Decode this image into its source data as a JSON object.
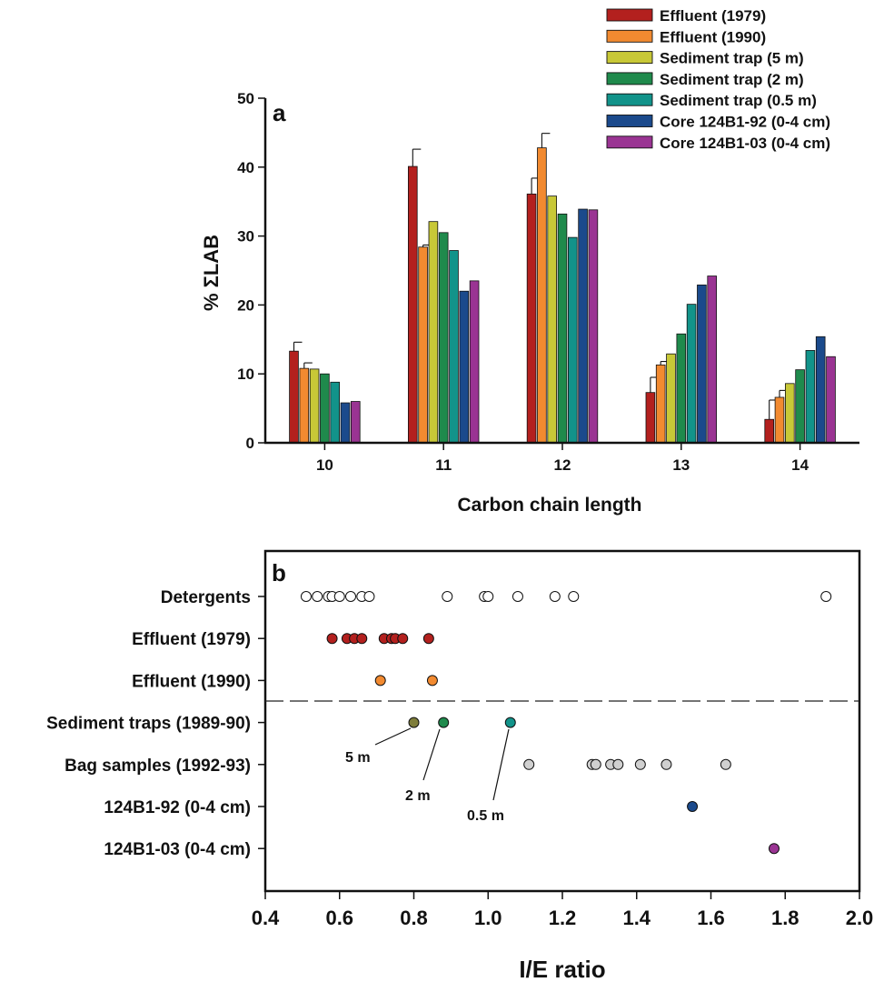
{
  "chart_data": [
    {
      "panel": "a",
      "type": "bar",
      "xlabel": "Carbon chain length",
      "ylabel": "% ΣLAB",
      "categories": [
        "10",
        "11",
        "12",
        "13",
        "14"
      ],
      "ylim": [
        0,
        50
      ],
      "yticks": [
        "0",
        "10",
        "20",
        "30",
        "40",
        "50"
      ],
      "grid": false,
      "legend_position": "top-right",
      "series": [
        {
          "name": "Effluent (1979)",
          "color": "#b3201e",
          "values": [
            13.3,
            40.1,
            36.1,
            7.3,
            3.4
          ],
          "errors": [
            1.3,
            2.5,
            2.3,
            2.2,
            2.8
          ]
        },
        {
          "name": "Effluent (1990)",
          "color": "#f28a30",
          "values": [
            10.8,
            28.4,
            42.8,
            11.3,
            6.6
          ],
          "errors": [
            0.8,
            0.3,
            2.1,
            0.5,
            1.0
          ]
        },
        {
          "name": "Sediment trap (5 m)",
          "color": "#c8c837",
          "values": [
            10.7,
            32.1,
            35.8,
            12.9,
            8.6
          ]
        },
        {
          "name": "Sediment trap (2 m)",
          "color": "#1f8a4c",
          "values": [
            10.0,
            30.5,
            33.2,
            15.8,
            10.6
          ]
        },
        {
          "name": "Sediment trap (0.5 m)",
          "color": "#12938a",
          "values": [
            8.8,
            27.9,
            29.8,
            20.1,
            13.4
          ]
        },
        {
          "name": "Core 124B1-92 (0-4 cm)",
          "color": "#1b4a8c",
          "values": [
            5.8,
            22.0,
            33.9,
            22.9,
            15.4
          ]
        },
        {
          "name": "Core 124B1-03 (0-4 cm)",
          "color": "#9a3493",
          "values": [
            6.0,
            23.5,
            33.8,
            24.2,
            12.5
          ]
        }
      ]
    },
    {
      "panel": "b",
      "type": "scatter",
      "xlabel": "I/E ratio",
      "xlim": [
        0.4,
        2.0
      ],
      "xticks": [
        "0.4",
        "0.6",
        "0.8",
        "1.0",
        "1.2",
        "1.4",
        "1.6",
        "1.8",
        "2.0"
      ],
      "grid": false,
      "categories": [
        "Detergents",
        "Effluent (1979)",
        "Effluent (1990)",
        "Sediment traps (1989-90)",
        "Bag samples (1992-93)",
        "124B1-92 (0-4 cm)",
        "124B1-03 (0-4 cm)"
      ],
      "separator_after": "Effluent (1990)",
      "series": [
        {
          "category": "Detergents",
          "color": "#ffffff",
          "x": [
            0.51,
            0.54,
            0.57,
            0.58,
            0.6,
            0.63,
            0.66,
            0.68,
            0.89,
            0.99,
            1.0,
            1.08,
            1.18,
            1.23,
            1.91
          ]
        },
        {
          "category": "Effluent (1979)",
          "color": "#b3201e",
          "x": [
            0.58,
            0.62,
            0.64,
            0.66,
            0.72,
            0.74,
            0.75,
            0.77,
            0.84
          ]
        },
        {
          "category": "Effluent (1990)",
          "color": "#f28a30",
          "x": [
            0.71,
            0.85
          ]
        },
        {
          "category": "Sediment traps (1989-90)",
          "colors": [
            "#7e7d3a",
            "#1f8a4c",
            "#12938a"
          ],
          "x": [
            0.8,
            0.88,
            1.06
          ]
        },
        {
          "category": "Bag samples (1992-93)",
          "color": "#d0d0d0",
          "x": [
            1.11,
            1.28,
            1.29,
            1.33,
            1.35,
            1.41,
            1.48,
            1.64
          ]
        },
        {
          "category": "124B1-92 (0-4 cm)",
          "color": "#1b4a8c",
          "x": [
            1.55
          ]
        },
        {
          "category": "124B1-03 (0-4 cm)",
          "color": "#9a3493",
          "x": [
            1.77
          ]
        }
      ],
      "annotations": [
        "5 m",
        "2 m",
        "0.5 m"
      ]
    }
  ]
}
